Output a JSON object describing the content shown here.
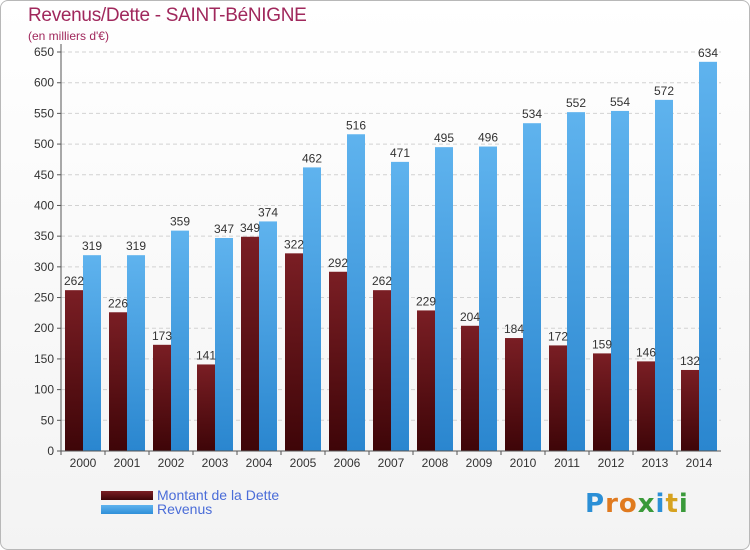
{
  "header": {
    "title": "Revenus/Dette - SAINT-BéNIGNE",
    "subtitle": "(en milliers d'€)"
  },
  "legend": {
    "debt_label": "Montant de la Dette",
    "revenue_label": "Revenus"
  },
  "logo": {
    "text": "Proxiti",
    "letters": [
      "P",
      "r",
      "o",
      "x",
      "i",
      "t",
      "i"
    ],
    "colors": [
      "#2b8fd6",
      "#e07a1f",
      "#e07a1f",
      "#3a9a3a",
      "#2b8fd6",
      "#d6a21f",
      "#3a9a3a"
    ]
  },
  "colors": {
    "debt": "#5a0d12",
    "revenue": "#3e9ee6",
    "title": "#a0285c"
  },
  "chart_data": {
    "type": "bar",
    "title": "Revenus/Dette - SAINT-BéNIGNE",
    "ylabel": "(en milliers d'€)",
    "categories": [
      "2000",
      "2001",
      "2002",
      "2003",
      "2004",
      "2005",
      "2006",
      "2007",
      "2008",
      "2009",
      "2010",
      "2011",
      "2012",
      "2013",
      "2014"
    ],
    "series": [
      {
        "name": "Montant de la Dette",
        "values": [
          262,
          226,
          173,
          141,
          349,
          322,
          292,
          262,
          229,
          204,
          184,
          172,
          159,
          146,
          132
        ]
      },
      {
        "name": "Revenus",
        "values": [
          319,
          319,
          359,
          347,
          374,
          462,
          516,
          471,
          495,
          496,
          534,
          552,
          554,
          572,
          634
        ]
      }
    ],
    "ylim": [
      0,
      650
    ],
    "yticks": [
      0,
      50,
      100,
      150,
      200,
      250,
      300,
      350,
      400,
      450,
      500,
      550,
      600,
      650
    ],
    "grid": true,
    "legend_position": "bottom-left"
  }
}
